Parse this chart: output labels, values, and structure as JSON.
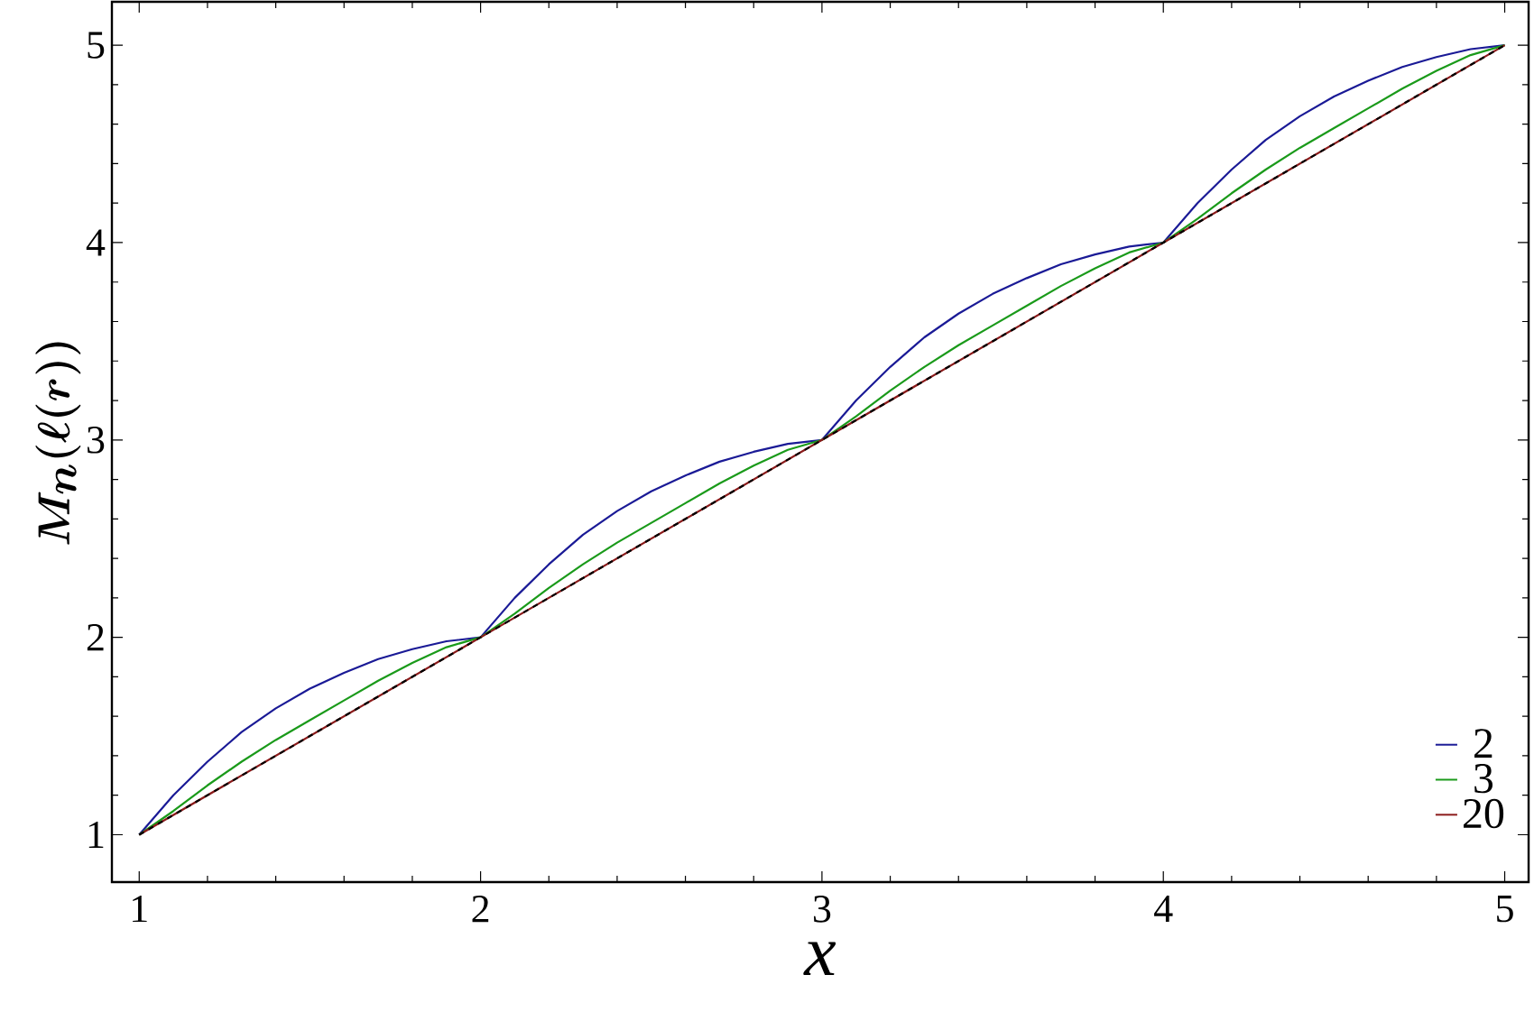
{
  "chart_data": {
    "type": "line",
    "xlabel": "x",
    "ylabel": "M_n(\\ell(r))",
    "xlim": [
      0.92,
      5.07
    ],
    "ylim": [
      0.76,
      5.22
    ],
    "xticks": [
      1,
      2,
      3,
      4,
      5
    ],
    "yticks": [
      1,
      2,
      3,
      4,
      5
    ],
    "legend": "bottom right",
    "grid": false,
    "marker": "none",
    "series": [
      {
        "name": "2",
        "color": "#1a1a96",
        "line_style": "solid",
        "x": [
          1,
          1.1,
          1.2,
          1.3,
          1.4,
          1.5,
          1.6,
          1.7,
          1.8,
          1.9,
          2,
          2.1,
          2.2,
          2.3,
          2.4,
          2.5,
          2.6,
          2.7,
          2.8,
          2.9,
          3,
          3.1,
          3.2,
          3.3,
          3.4,
          3.5,
          3.6,
          3.7,
          3.8,
          3.9,
          4,
          4.1,
          4.2,
          4.3,
          4.4,
          4.5,
          4.6,
          4.7,
          4.8,
          4.9,
          5
        ],
        "values": [
          1,
          1.2,
          1.37,
          1.52,
          1.64,
          1.74,
          1.82,
          1.89,
          1.94,
          1.98,
          2,
          2.2,
          2.37,
          2.52,
          2.64,
          2.74,
          2.82,
          2.89,
          2.94,
          2.98,
          3,
          3.2,
          3.37,
          3.52,
          3.64,
          3.74,
          3.82,
          3.89,
          3.94,
          3.98,
          4,
          4.2,
          4.37,
          4.52,
          4.64,
          4.74,
          4.82,
          4.89,
          4.94,
          4.98,
          5
        ]
      },
      {
        "name": "3",
        "color": "#1a9a1a",
        "line_style": "solid",
        "x": [
          1,
          1.1,
          1.2,
          1.3,
          1.4,
          1.5,
          1.6,
          1.7,
          1.8,
          1.9,
          2,
          2.1,
          2.2,
          2.3,
          2.4,
          2.5,
          2.6,
          2.7,
          2.8,
          2.9,
          3,
          3.1,
          3.2,
          3.3,
          3.4,
          3.5,
          3.6,
          3.7,
          3.8,
          3.9,
          4,
          4.1,
          4.2,
          4.3,
          4.4,
          4.5,
          4.6,
          4.7,
          4.8,
          4.9,
          5
        ],
        "values": [
          1,
          1.12,
          1.25,
          1.37,
          1.48,
          1.58,
          1.68,
          1.78,
          1.87,
          1.95,
          2,
          2.12,
          2.25,
          2.37,
          2.48,
          2.58,
          2.68,
          2.78,
          2.87,
          2.95,
          3,
          3.12,
          3.25,
          3.37,
          3.48,
          3.58,
          3.68,
          3.78,
          3.87,
          3.95,
          4,
          4.12,
          4.25,
          4.37,
          4.48,
          4.58,
          4.68,
          4.78,
          4.87,
          4.95,
          5
        ]
      },
      {
        "name": "20",
        "color": "#8b1a1a",
        "line_style": "solid",
        "x": [
          1,
          2,
          3,
          4,
          5
        ],
        "values": [
          1,
          2,
          3,
          4,
          5
        ]
      },
      {
        "color": "#000000",
        "line_style": "dashed",
        "x": [
          1,
          5
        ],
        "values": [
          1,
          5
        ]
      }
    ]
  }
}
